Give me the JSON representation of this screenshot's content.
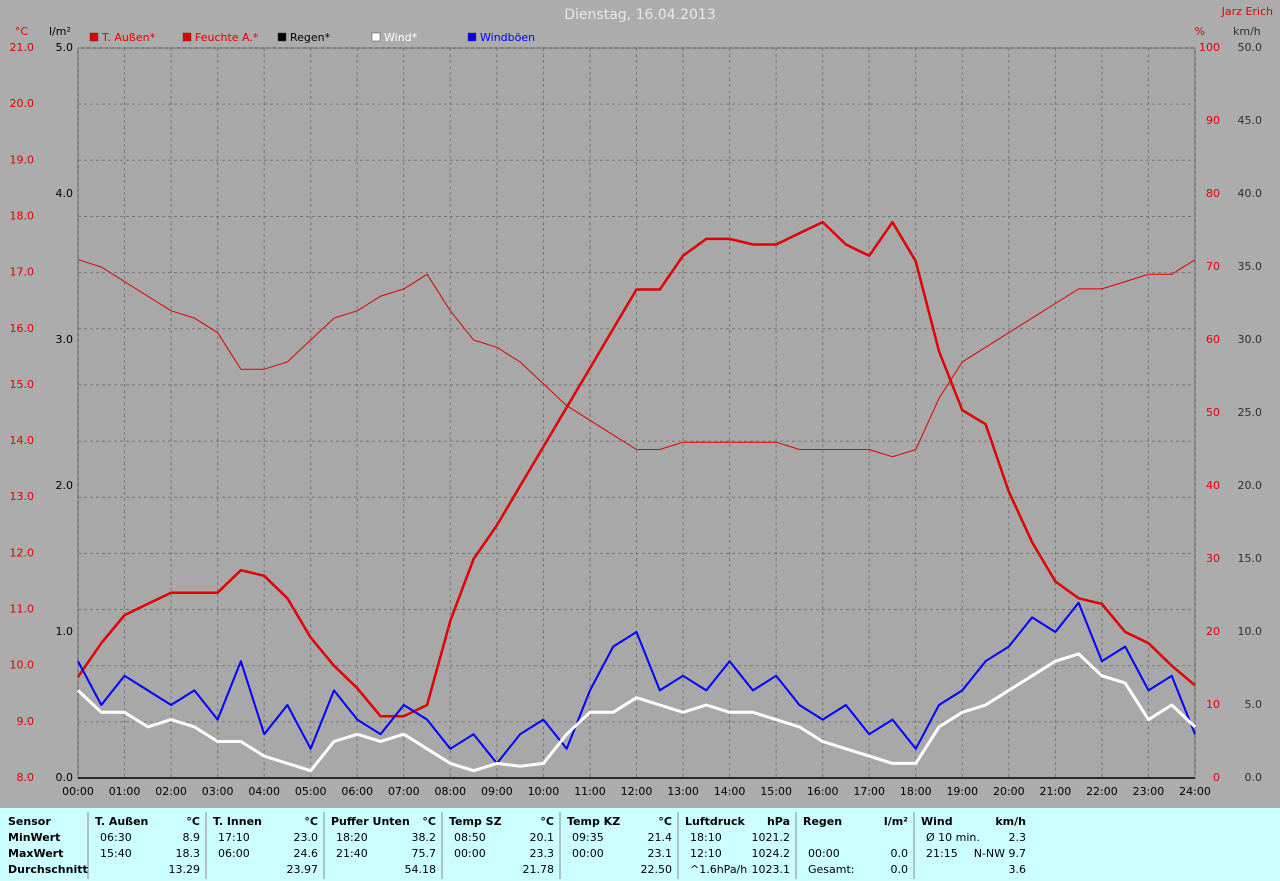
{
  "chart_data": {
    "type": "line",
    "title": "Dienstag, 16.04.2013",
    "author": "Jarz Erich",
    "x": [
      "00:00",
      "00:30",
      "01:00",
      "01:30",
      "02:00",
      "02:30",
      "03:00",
      "03:30",
      "04:00",
      "04:30",
      "05:00",
      "05:30",
      "06:00",
      "06:30",
      "07:00",
      "07:30",
      "08:00",
      "08:30",
      "09:00",
      "09:30",
      "10:00",
      "10:30",
      "11:00",
      "11:30",
      "12:00",
      "12:30",
      "13:00",
      "13:30",
      "14:00",
      "14:30",
      "15:00",
      "15:30",
      "16:00",
      "16:30",
      "17:00",
      "17:30",
      "18:00",
      "18:30",
      "19:00",
      "19:30",
      "20:00",
      "20:30",
      "21:00",
      "21:30",
      "22:00",
      "22:30",
      "23:00",
      "23:30",
      "24:00"
    ],
    "xticks": [
      "00:00",
      "01:00",
      "02:00",
      "03:00",
      "04:00",
      "05:00",
      "06:00",
      "07:00",
      "08:00",
      "09:00",
      "10:00",
      "11:00",
      "12:00",
      "13:00",
      "14:00",
      "15:00",
      "16:00",
      "17:00",
      "18:00",
      "19:00",
      "20:00",
      "21:00",
      "22:00",
      "23:00",
      "24:00"
    ],
    "y_label": "°C",
    "ylim": [
      8,
      21
    ],
    "yticks": [
      {
        "value": 8,
        "label": "8.0"
      },
      {
        "value": 9,
        "label": "9.0"
      },
      {
        "value": 10,
        "label": "10.0"
      },
      {
        "value": 11,
        "label": "11.0"
      },
      {
        "value": 12,
        "label": "12.0"
      },
      {
        "value": 13,
        "label": "13.0"
      },
      {
        "value": 14,
        "label": "14.0"
      },
      {
        "value": 15,
        "label": "15.0"
      },
      {
        "value": 16,
        "label": "16.0"
      },
      {
        "value": 17,
        "label": "17.0"
      },
      {
        "value": 18,
        "label": "18.0"
      },
      {
        "value": 19,
        "label": "19.0"
      },
      {
        "value": 20,
        "label": "20.0"
      },
      {
        "value": 21,
        "label": "21.0"
      }
    ],
    "y3_label": "l/m²",
    "y3lim": [
      0,
      5
    ],
    "y3ticks": [
      {
        "value": 0,
        "label": "0.0"
      },
      {
        "value": 1,
        "label": "1.0"
      },
      {
        "value": 2,
        "label": "2.0"
      },
      {
        "value": 3,
        "label": "3.0"
      },
      {
        "value": 4,
        "label": "4.0"
      },
      {
        "value": 5,
        "label": "5.0"
      }
    ],
    "y2_label": "%",
    "y2lim": [
      0,
      100
    ],
    "y2ticks": [
      0,
      10,
      20,
      30,
      40,
      50,
      60,
      70,
      80,
      90,
      100
    ],
    "y4_label": "km/h",
    "y4lim": [
      0,
      50
    ],
    "y4ticks": [
      {
        "value": 0,
        "label": "0.0"
      },
      {
        "value": 5,
        "label": "5.0"
      },
      {
        "value": 10,
        "label": "10.0"
      },
      {
        "value": 15,
        "label": "15.0"
      },
      {
        "value": 20,
        "label": "20.0"
      },
      {
        "value": 25,
        "label": "25.0"
      },
      {
        "value": 30,
        "label": "30.0"
      },
      {
        "value": 35,
        "label": "35.0"
      },
      {
        "value": 40,
        "label": "40.0"
      },
      {
        "value": 45,
        "label": "45.0"
      },
      {
        "value": 50,
        "label": "50.0"
      }
    ],
    "grid": true,
    "series": [
      {
        "name": "T. Außen*",
        "color": "#e00000",
        "axis": "y",
        "values": [
          9.8,
          10.4,
          10.9,
          11.1,
          11.3,
          11.3,
          11.3,
          11.7,
          11.6,
          11.2,
          10.5,
          10.0,
          9.6,
          9.1,
          9.1,
          9.3,
          10.8,
          11.9,
          12.5,
          13.2,
          13.9,
          14.6,
          15.3,
          16.0,
          16.7,
          16.7,
          17.3,
          17.6,
          17.6,
          17.5,
          17.5,
          17.7,
          17.9,
          17.5,
          17.3,
          17.9,
          17.2,
          15.6,
          14.55,
          14.3,
          13.1,
          12.2,
          11.5,
          11.2,
          11.1,
          10.6,
          10.4,
          10.0,
          9.65
        ]
      },
      {
        "name": "Feuchte A.*",
        "color": "#e00000",
        "axis": "y2",
        "values": [
          71,
          70,
          68,
          66,
          64,
          63,
          61,
          56,
          56,
          57,
          60,
          63,
          64,
          66,
          67,
          69,
          64,
          60,
          59,
          57,
          54,
          51,
          49,
          47,
          45,
          45,
          46,
          46,
          46,
          46,
          46,
          45,
          45,
          45,
          45,
          44,
          45,
          52,
          57,
          59,
          61,
          63,
          65,
          67,
          67,
          68,
          69,
          69,
          71
        ]
      },
      {
        "name": "Regen*",
        "color": "#000000",
        "axis": "y3",
        "values": [
          0,
          0,
          0,
          0,
          0,
          0,
          0,
          0,
          0,
          0,
          0,
          0,
          0,
          0,
          0,
          0,
          0,
          0,
          0,
          0,
          0,
          0,
          0,
          0,
          0,
          0,
          0,
          0,
          0,
          0,
          0,
          0,
          0,
          0,
          0,
          0,
          0,
          0,
          0,
          0,
          0,
          0,
          0,
          0,
          0,
          0,
          0,
          0,
          0
        ]
      },
      {
        "name": "Windböen",
        "color": "#0000ff",
        "axis": "y4",
        "values": [
          8,
          5,
          7,
          6,
          5,
          6,
          4,
          8,
          3,
          5,
          2,
          6,
          4,
          3,
          5,
          4,
          2,
          3,
          1,
          3,
          4,
          2,
          6,
          9,
          10,
          6,
          7,
          6,
          8,
          6,
          7,
          5,
          4,
          5,
          3,
          4,
          2,
          5,
          6,
          8,
          9,
          11,
          10,
          12,
          8,
          9,
          6,
          7,
          3
        ]
      },
      {
        "name": "Wind*",
        "color": "#ffffff",
        "axis": "y4",
        "values": [
          6,
          4.5,
          4.5,
          3.5,
          4,
          3.5,
          2.5,
          2.5,
          1.5,
          1,
          0.5,
          2.5,
          3,
          2.5,
          3,
          2,
          1,
          0.5,
          1,
          0.8,
          1,
          3,
          4.5,
          4.5,
          5.5,
          5,
          4.5,
          5,
          4.5,
          4.5,
          4,
          3.5,
          2.5,
          2,
          1.5,
          1,
          1,
          3.5,
          4.5,
          5,
          6,
          7,
          8,
          8.5,
          7,
          6.5,
          4,
          5,
          3.5
        ]
      }
    ]
  },
  "table": {
    "header": "Sensor",
    "rows": [
      "MinWert",
      "MaxWert",
      "Durchschnitt"
    ],
    "groups": [
      {
        "name": "T. Außen",
        "unit": "°C",
        "cells": [
          [
            "06:30",
            "8.9"
          ],
          [
            "15:40",
            "18.3"
          ],
          [
            null,
            "13.29"
          ]
        ]
      },
      {
        "name": "T. Innen",
        "unit": "°C",
        "cells": [
          [
            "17:10",
            "23.0"
          ],
          [
            "06:00",
            "24.6"
          ],
          [
            null,
            "23.97"
          ]
        ]
      },
      {
        "name": "Puffer Unten",
        "unit": "°C",
        "cells": [
          [
            "18:20",
            "38.2"
          ],
          [
            "21:40",
            "75.7"
          ],
          [
            null,
            "54.18"
          ]
        ]
      },
      {
        "name": "Temp SZ",
        "unit": "°C",
        "cells": [
          [
            "08:50",
            "20.1"
          ],
          [
            "00:00",
            "23.3"
          ],
          [
            null,
            "21.78"
          ]
        ]
      },
      {
        "name": "Temp KZ",
        "unit": "°C",
        "cells": [
          [
            "09:35",
            "21.4"
          ],
          [
            "00:00",
            "23.1"
          ],
          [
            null,
            "22.50"
          ]
        ]
      },
      {
        "name": "Luftdruck",
        "unit": "hPa",
        "cells": [
          [
            "18:10",
            "1021.2"
          ],
          [
            "12:10",
            "1024.2"
          ],
          [
            "^1.6hPa/h",
            "1023.1"
          ]
        ]
      },
      {
        "name": "Regen",
        "unit": "l/m²",
        "cells": [
          [
            null,
            null
          ],
          [
            "00:00",
            "0.0"
          ],
          [
            "Gesamt:",
            "0.0"
          ]
        ]
      },
      {
        "name": "Wind",
        "unit": "km/h",
        "cells": [
          [
            "Ø 10 min.",
            "2.3"
          ],
          [
            "21:15",
            "N-NW 9.7"
          ],
          [
            null,
            "3.6"
          ]
        ]
      }
    ]
  }
}
